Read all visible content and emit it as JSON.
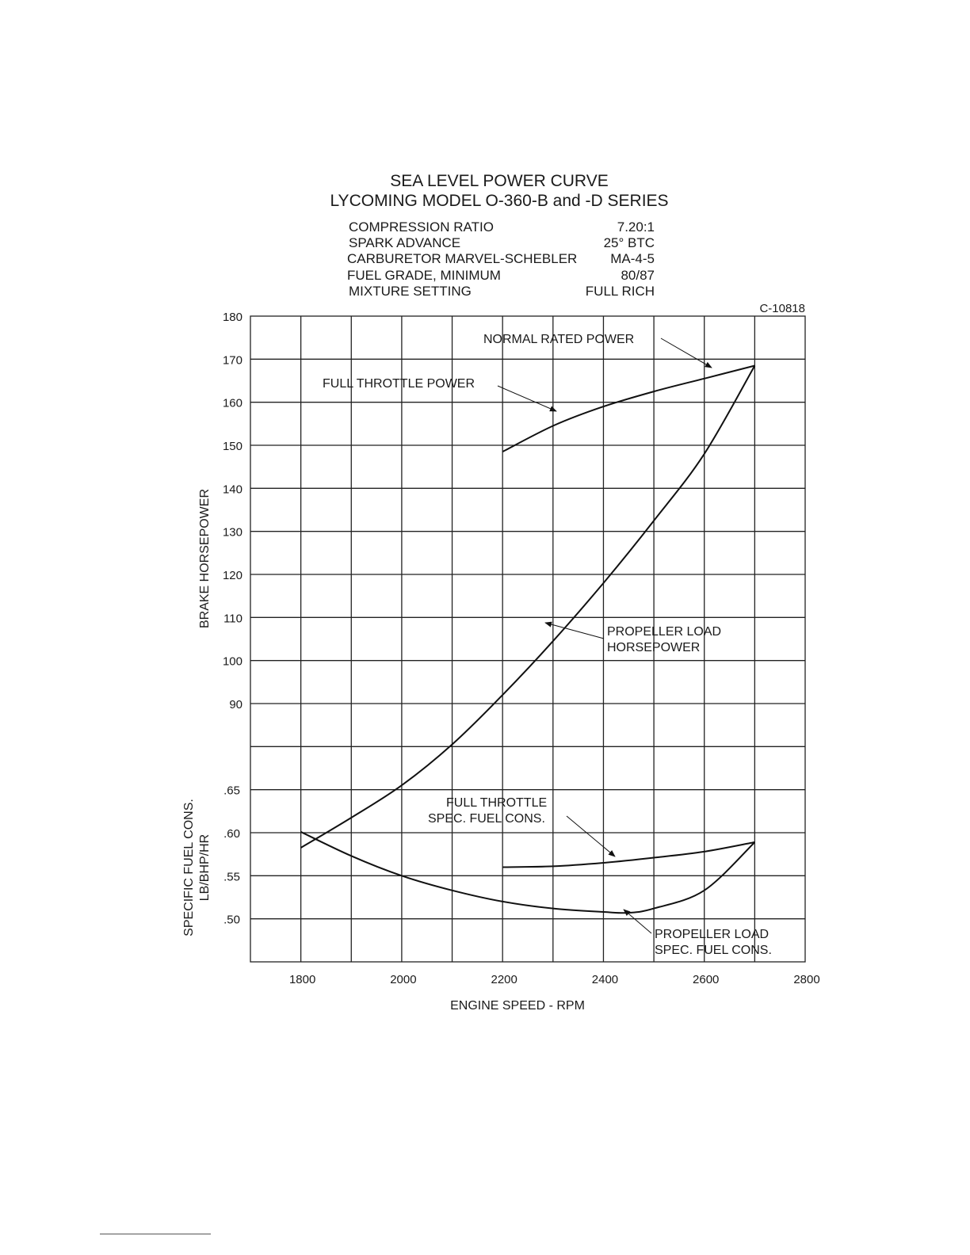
{
  "chart_data": {
    "type": "line",
    "title": "SEA LEVEL POWER CURVE",
    "subtitle": "LYCOMING MODEL O-360-B and -D SERIES",
    "figure_id": "C-10818",
    "specs": [
      {
        "label": "COMPRESSION RATIO",
        "value": "7.20:1"
      },
      {
        "label": "SPARK ADVANCE",
        "value": "25° BTC"
      },
      {
        "label": "CARBURETOR MARVEL-SCHEBLER",
        "value": "MA-4-5"
      },
      {
        "label": "FUEL GRADE, MINIMUM",
        "value": "80/87"
      },
      {
        "label": "MIXTURE SETTING",
        "value": "FULL RICH"
      }
    ],
    "xlabel": "ENGINE SPEED - RPM",
    "xlim": [
      1700,
      2800
    ],
    "x_ticks": [
      "1800",
      "2000",
      "2200",
      "2400",
      "2600",
      "2800"
    ],
    "hp_axis": {
      "label": "BRAKE HORSEPOWER",
      "ylim": [
        80,
        180
      ],
      "ticks": [
        "180",
        "170",
        "160",
        "150",
        "140",
        "130",
        "120",
        "110",
        "100",
        "90"
      ]
    },
    "sfc_axis": {
      "label_line1": "SPECIFIC FUEL CONS.",
      "label_line2": "LB/BHP/HR",
      "ylim": [
        0.45,
        0.7
      ],
      "ticks": [
        ".65",
        ".60",
        ".55",
        ".50"
      ]
    },
    "series": [
      {
        "name": "FULL THROTTLE POWER",
        "axis": "hp",
        "x": [
          2200,
          2300,
          2400,
          2500,
          2600,
          2700
        ],
        "y": [
          148.5,
          154.5,
          159.0,
          162.5,
          165.5,
          168.5
        ]
      },
      {
        "name": "PROPELLER LOAD HORSEPOWER",
        "axis": "hp",
        "x": [
          1800,
          1900,
          2000,
          2100,
          2200,
          2300,
          2400,
          2500,
          2600,
          2700
        ],
        "y": [
          56.5,
          63.5,
          71.0,
          80.5,
          92.0,
          104.5,
          118.0,
          132.5,
          148.0,
          168.5
        ]
      },
      {
        "name": "FULL THROTTLE SPEC. FUEL CONS.",
        "axis": "sfc",
        "x": [
          2200,
          2300,
          2400,
          2500,
          2600,
          2700
        ],
        "y": [
          0.56,
          0.561,
          0.565,
          0.571,
          0.578,
          0.589
        ]
      },
      {
        "name": "PROPELLER LOAD SPEC. FUEL CONS.",
        "axis": "sfc",
        "x": [
          1800,
          1900,
          2000,
          2100,
          2200,
          2300,
          2400,
          2450,
          2500,
          2600,
          2700
        ],
        "y": [
          0.601,
          0.573,
          0.55,
          0.533,
          0.52,
          0.512,
          0.508,
          0.507,
          0.512,
          0.533,
          0.589
        ]
      }
    ],
    "annotations": {
      "normal_rated_power": "NORMAL RATED POWER",
      "full_throttle_power": "FULL THROTTLE POWER",
      "prop_load_hp_1": "PROPELLER LOAD",
      "prop_load_hp_2": "HORSEPOWER",
      "full_throttle_sfc_1": "FULL THROTTLE",
      "full_throttle_sfc_2": "SPEC. FUEL CONS.",
      "prop_load_sfc_1": "PROPELLER LOAD",
      "prop_load_sfc_2": "SPEC. FUEL CONS."
    }
  }
}
